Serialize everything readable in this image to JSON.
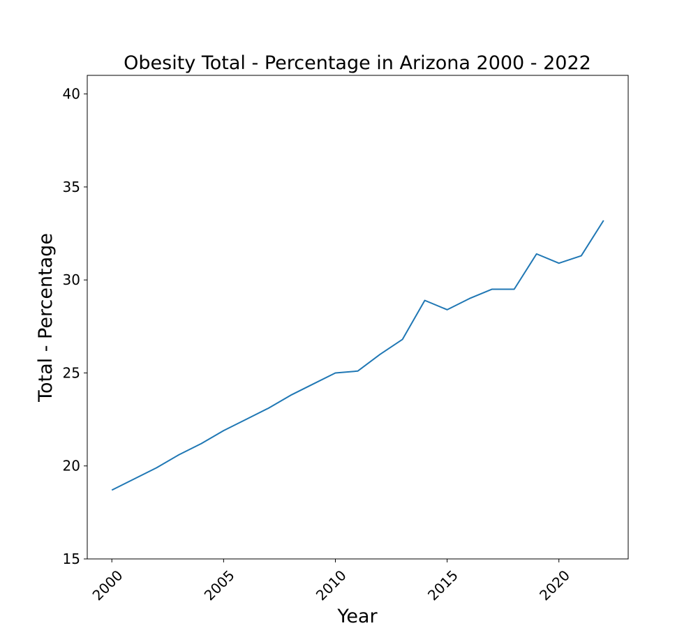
{
  "chart_data": {
    "type": "line",
    "title": "Obesity Total - Percentage in Arizona 2000 - 2022",
    "xlabel": "Year",
    "ylabel": "Total - Percentage",
    "x": [
      2000,
      2001,
      2002,
      2003,
      2004,
      2005,
      2006,
      2007,
      2008,
      2009,
      2010,
      2011,
      2012,
      2013,
      2014,
      2015,
      2016,
      2017,
      2018,
      2019,
      2020,
      2021,
      2022
    ],
    "series": [
      {
        "values": [
          18.7,
          19.3,
          19.9,
          20.6,
          21.2,
          21.9,
          22.5,
          23.1,
          23.8,
          24.4,
          25.0,
          25.1,
          26.0,
          26.8,
          28.9,
          28.4,
          29.0,
          29.5,
          29.5,
          31.4,
          30.9,
          31.3,
          33.2
        ],
        "color": "#1f77b4"
      }
    ],
    "xlim": [
      1998.9,
      2023.1
    ],
    "ylim": [
      15,
      41
    ],
    "xticks": [
      "2000",
      "2005",
      "2010",
      "2015",
      "2020"
    ],
    "yticks": [
      "15",
      "20",
      "25",
      "30",
      "35",
      "40"
    ],
    "xtick_rotation": -45,
    "grid": false,
    "legend": "none"
  }
}
